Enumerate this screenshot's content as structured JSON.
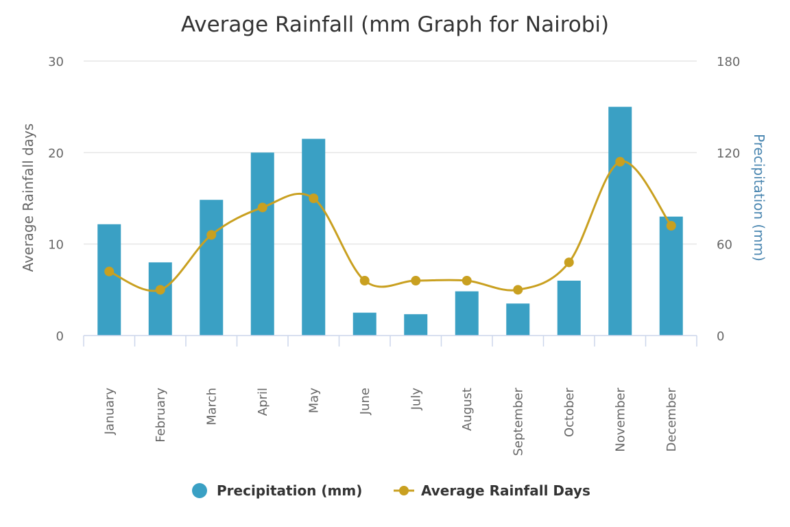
{
  "chart_data": {
    "type": "bar",
    "title": "Average Rainfall (mm Graph for Nairobi)",
    "categories": [
      "January",
      "February",
      "March",
      "April",
      "May",
      "June",
      "July",
      "August",
      "September",
      "October",
      "November",
      "December"
    ],
    "y_left": {
      "label": "Average Rainfall days",
      "range": [
        0,
        30
      ],
      "ticks": [
        "0",
        "10",
        "20",
        "30"
      ]
    },
    "y_right": {
      "label": "Precipitation (mm)",
      "range": [
        0,
        180
      ],
      "ticks": [
        "0",
        "60",
        "120",
        "180"
      ]
    },
    "series": [
      {
        "name": "Precipitation (mm)",
        "type": "bar",
        "axis": "right",
        "color": "#3aa0c4",
        "values": [
          73,
          48,
          89,
          120,
          129,
          15,
          14,
          29,
          21,
          36,
          150,
          78
        ]
      },
      {
        "name": "Average Rainfall Days",
        "type": "line",
        "axis": "left",
        "color": "#c9a020",
        "values": [
          7,
          5,
          11,
          14,
          15,
          6,
          6,
          6,
          5,
          8,
          19,
          12
        ]
      }
    ],
    "grid": true,
    "legend_position": "bottom-center"
  }
}
